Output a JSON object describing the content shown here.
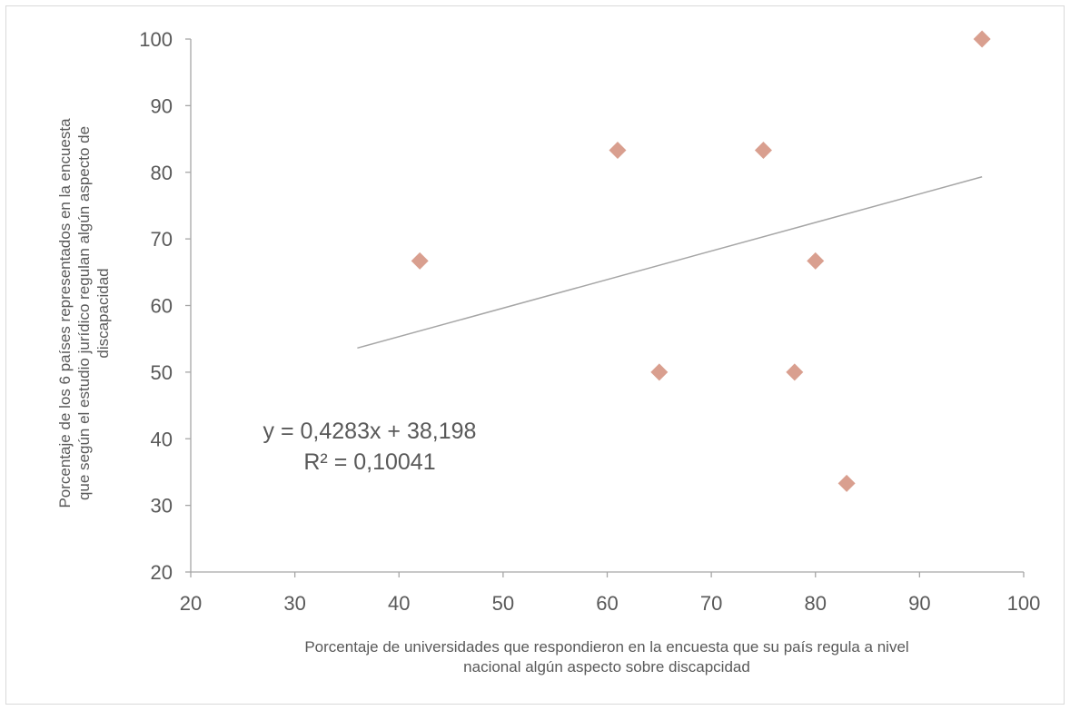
{
  "chart_data": {
    "type": "scatter",
    "xlim": [
      20,
      100
    ],
    "ylim": [
      20,
      100
    ],
    "xticks": [
      20,
      30,
      40,
      50,
      60,
      70,
      80,
      90,
      100
    ],
    "yticks": [
      20,
      30,
      40,
      50,
      60,
      70,
      80,
      90,
      100
    ],
    "xlabel": [
      "Porcentaje de universidades que respondieron en la encuesta que su país regula a nivel",
      "nacional algún aspecto sobre discapcidad"
    ],
    "ylabel": [
      "Porcentaje de los 6 países representados en la encuesta",
      "que según el estudio jurídico regulan algún aspecto de",
      "discapacidad"
    ],
    "series": [
      {
        "marker": "diamond",
        "color": "#d99f8f",
        "points": [
          {
            "x": 42,
            "y": 66.7
          },
          {
            "x": 61,
            "y": 83.3
          },
          {
            "x": 65,
            "y": 50
          },
          {
            "x": 75,
            "y": 83.3
          },
          {
            "x": 78,
            "y": 50
          },
          {
            "x": 80,
            "y": 66.7
          },
          {
            "x": 83,
            "y": 33.3
          },
          {
            "x": 96,
            "y": 100
          }
        ]
      }
    ],
    "trendline": {
      "type": "linear",
      "slope": 0.4283,
      "intercept": 38.198,
      "x_range": [
        36,
        96
      ],
      "color": "#a6a6a6",
      "equation_label": "y = 0,4283x + 38,198",
      "r2_label": "R² = 0,10041"
    },
    "grid": false,
    "legend": "none",
    "axis_color": "#a6a6a6"
  }
}
